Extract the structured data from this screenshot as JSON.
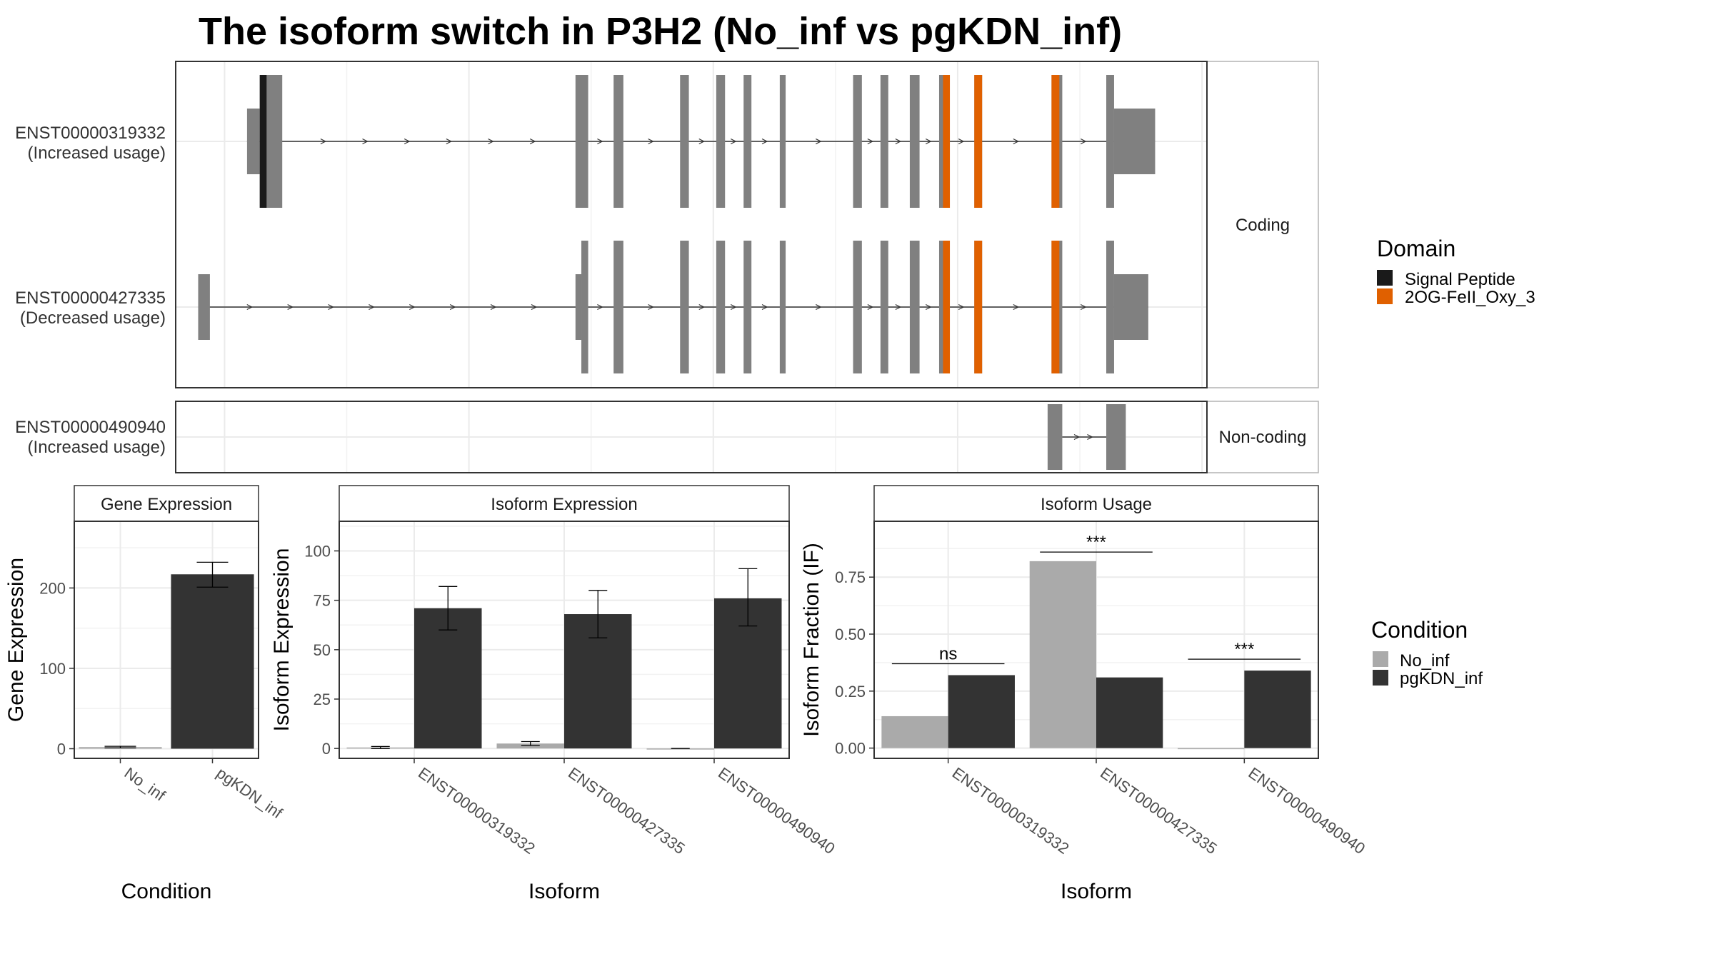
{
  "title": "The isoform switch in P3H2 (No_inf vs pgKDN_inf)",
  "colors": {
    "exon": "#808080",
    "signal_peptide": "#1a1a1a",
    "oxy_domain": "#e06000",
    "no_inf": "#aaaaaa",
    "pgkdn_inf": "#333333"
  },
  "chart_data": [
    {
      "type": "gene-structure",
      "genomic_range": [
        0,
        1.0
      ],
      "panels": [
        {
          "strip": "Coding",
          "transcripts": [
            {
              "id": "ENST00000319332",
              "usage": "(Increased usage)",
              "exons": [
                {
                  "start": 0.086,
                  "end": 0.109,
                  "coding": true
                },
                {
                  "start": 0.409,
                  "end": 0.422,
                  "coding": true
                },
                {
                  "start": 0.448,
                  "end": 0.458,
                  "coding": true
                },
                {
                  "start": 0.516,
                  "end": 0.525,
                  "coding": true
                },
                {
                  "start": 0.553,
                  "end": 0.562,
                  "coding": true
                },
                {
                  "start": 0.581,
                  "end": 0.589,
                  "coding": true
                },
                {
                  "start": 0.618,
                  "end": 0.624,
                  "coding": true
                },
                {
                  "start": 0.693,
                  "end": 0.702,
                  "coding": true
                },
                {
                  "start": 0.721,
                  "end": 0.729,
                  "coding": true
                },
                {
                  "start": 0.751,
                  "end": 0.761,
                  "coding": true
                },
                {
                  "start": 0.781,
                  "end": 0.792,
                  "coding": true
                },
                {
                  "start": 0.817,
                  "end": 0.825,
                  "coding": true
                },
                {
                  "start": 0.896,
                  "end": 0.907,
                  "coding": true
                },
                {
                  "start": 0.952,
                  "end": 0.96,
                  "coding": true
                }
              ],
              "utr": [
                {
                  "start": 0.073,
                  "end": 0.086
                },
                {
                  "start": 0.96,
                  "end": 1.002
                }
              ],
              "domains": [
                {
                  "name": "Signal Peptide",
                  "start": 0.086,
                  "end": 0.093
                },
                {
                  "name": "2OG-FeII_Oxy_3",
                  "start": 0.785,
                  "end": 0.792
                },
                {
                  "name": "2OG-FeII_Oxy_3",
                  "start": 0.817,
                  "end": 0.825
                },
                {
                  "name": "2OG-FeII_Oxy_3",
                  "start": 0.896,
                  "end": 0.904
                }
              ]
            },
            {
              "id": "ENST00000427335",
              "usage": "(Decreased usage)",
              "exons": [
                {
                  "start": 0.415,
                  "end": 0.422,
                  "coding": true
                },
                {
                  "start": 0.448,
                  "end": 0.458,
                  "coding": true
                },
                {
                  "start": 0.516,
                  "end": 0.525,
                  "coding": true
                },
                {
                  "start": 0.553,
                  "end": 0.562,
                  "coding": true
                },
                {
                  "start": 0.581,
                  "end": 0.589,
                  "coding": true
                },
                {
                  "start": 0.618,
                  "end": 0.624,
                  "coding": true
                },
                {
                  "start": 0.693,
                  "end": 0.702,
                  "coding": true
                },
                {
                  "start": 0.721,
                  "end": 0.729,
                  "coding": true
                },
                {
                  "start": 0.751,
                  "end": 0.761,
                  "coding": true
                },
                {
                  "start": 0.781,
                  "end": 0.792,
                  "coding": true
                },
                {
                  "start": 0.817,
                  "end": 0.825,
                  "coding": true
                },
                {
                  "start": 0.896,
                  "end": 0.907,
                  "coding": true
                },
                {
                  "start": 0.952,
                  "end": 0.96,
                  "coding": true
                }
              ],
              "utr": [
                {
                  "start": 0.023,
                  "end": 0.035
                },
                {
                  "start": 0.409,
                  "end": 0.415
                },
                {
                  "start": 0.96,
                  "end": 0.995
                }
              ],
              "domains": [
                {
                  "name": "2OG-FeII_Oxy_3",
                  "start": 0.785,
                  "end": 0.792
                },
                {
                  "name": "2OG-FeII_Oxy_3",
                  "start": 0.817,
                  "end": 0.825
                },
                {
                  "name": "2OG-FeII_Oxy_3",
                  "start": 0.896,
                  "end": 0.904
                }
              ]
            }
          ]
        },
        {
          "strip": "Non-coding",
          "transcripts": [
            {
              "id": "ENST00000490940",
              "usage": "(Increased usage)",
              "exons": [
                {
                  "start": 0.892,
                  "end": 0.907,
                  "coding": true
                },
                {
                  "start": 0.952,
                  "end": 0.972,
                  "coding": true
                }
              ],
              "utr": [],
              "domains": []
            }
          ]
        }
      ],
      "legend": {
        "title": "Domain",
        "entries": [
          "Signal Peptide",
          "2OG-FeII_Oxy_3"
        ]
      }
    },
    {
      "type": "bar",
      "strip": "Gene Expression",
      "xlabel": "Condition",
      "ylabel": "Gene Expression",
      "categories": [
        "No_inf",
        "pgKDN_inf"
      ],
      "values": [
        2,
        217
      ],
      "error": [
        [
          1,
          3
        ],
        [
          201,
          232
        ]
      ],
      "ylim": [
        -12,
        283
      ],
      "yticks": [
        0,
        100,
        200
      ]
    },
    {
      "type": "bar",
      "strip": "Isoform Expression",
      "xlabel": "Isoform",
      "ylabel": "Isoform Expression",
      "categories": [
        "ENST00000319332",
        "ENST00000427335",
        "ENST00000490940"
      ],
      "series": [
        {
          "name": "No_inf",
          "values": [
            0.5,
            2.5,
            0
          ],
          "error": [
            [
              0,
              1
            ],
            [
              1.5,
              3.5
            ],
            [
              0,
              0
            ]
          ]
        },
        {
          "name": "pgKDN_inf",
          "values": [
            71,
            68,
            76
          ],
          "error": [
            [
              60,
              82
            ],
            [
              56,
              80
            ],
            [
              62,
              91
            ]
          ]
        }
      ],
      "ylim": [
        -5,
        115
      ],
      "yticks": [
        0,
        25,
        50,
        75,
        100
      ]
    },
    {
      "type": "bar",
      "strip": "Isoform Usage",
      "xlabel": "Isoform",
      "ylabel": "Isoform Fraction (IF)",
      "categories": [
        "ENST00000319332",
        "ENST00000427335",
        "ENST00000490940"
      ],
      "series": [
        {
          "name": "No_inf",
          "values": [
            0.14,
            0.82,
            0
          ]
        },
        {
          "name": "pgKDN_inf",
          "values": [
            0.32,
            0.31,
            0.34
          ]
        }
      ],
      "significance": [
        {
          "label": "ns",
          "y": 0.37
        },
        {
          "label": "***",
          "y": 0.86
        },
        {
          "label": "***",
          "y": 0.39
        }
      ],
      "ylim": [
        -0.045,
        0.995
      ],
      "yticks": [
        "0.00",
        "0.25",
        "0.50",
        "0.75"
      ]
    }
  ],
  "condition_legend": {
    "title": "Condition",
    "entries": [
      "No_inf",
      "pgKDN_inf"
    ]
  }
}
